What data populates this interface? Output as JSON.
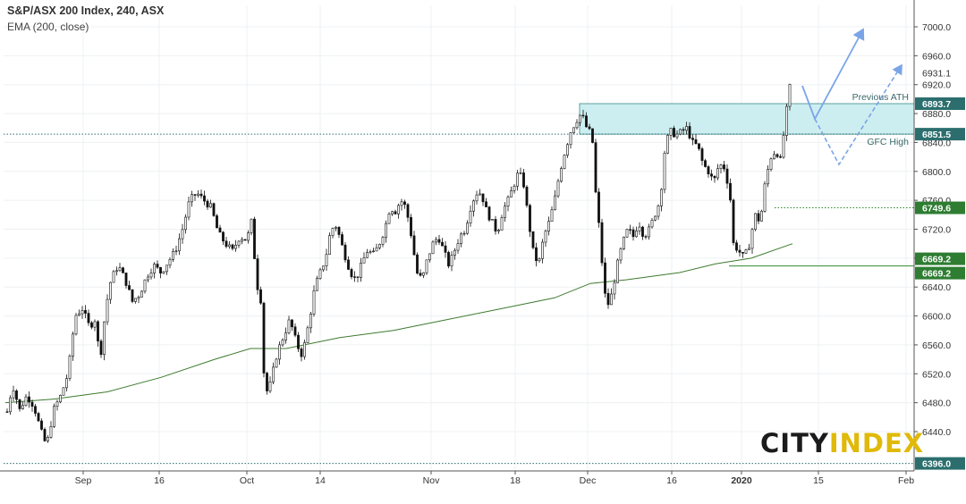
{
  "header": {
    "title": "S&P/ASX 200 Index, 240, ASX",
    "subtitle": "EMA (200, close)"
  },
  "logo": {
    "part1": "CITY",
    "part2": "INDEX"
  },
  "chart_data": {
    "type": "candlestick",
    "instrument": "S&P/ASX 200 Index",
    "timeframe": "240",
    "exchange": "ASX",
    "ylim": [
      6390,
      7020
    ],
    "y_ticks": [
      6440,
      6480,
      6520,
      6560,
      6600,
      6640,
      6680,
      6720,
      6760,
      6800,
      6840,
      6880,
      6920,
      6960,
      7000
    ],
    "y_tick_labels": [
      "6440.0",
      "6480.0",
      "6520.0",
      "6560.0",
      "6600.0",
      "6640.0",
      "6680.0",
      "6720.0",
      "6760.0",
      "6800.0",
      "6840.0",
      "6880.0",
      "6920.0",
      "6960.0",
      "7000.0"
    ],
    "x_tick_labels": [
      "Sep",
      "16",
      "Oct",
      "14",
      "Nov",
      "18",
      "Dec",
      "16",
      "2020",
      "15",
      "Feb"
    ],
    "price_labels": [
      {
        "value": 6931.1,
        "label": "6931.1",
        "style": "plain"
      },
      {
        "value": 6893.7,
        "label": "6893.7",
        "style": "box"
      },
      {
        "value": 6851.5,
        "label": "6851.5",
        "style": "box"
      },
      {
        "value": 6749.6,
        "label": "6749.6",
        "style": "box"
      },
      {
        "value": 6669.2,
        "label": "6669.2",
        "style": "box"
      },
      {
        "value": 6669.2,
        "label": "6669.2",
        "style": "box"
      },
      {
        "value": 6396.0,
        "label": "6396.0",
        "style": "box"
      }
    ],
    "zone": {
      "low": 6851.5,
      "high": 6893.7,
      "color": "#cdeef0",
      "border": "#3a8a8a"
    },
    "annotations": [
      {
        "text": "Previous ATH",
        "value": 6893.7
      },
      {
        "text": "GFC High",
        "value": 6851.5
      }
    ],
    "levels": [
      {
        "value": 6851.5,
        "style": "dotted",
        "color": "#2c6e6e"
      },
      {
        "value": 6749.6,
        "style": "dotted",
        "color": "#2e8b2e"
      },
      {
        "value": 6669.2,
        "style": "solid",
        "color": "#2e8b2e"
      },
      {
        "value": 6396.0,
        "style": "dotted",
        "color": "#2c6e6e"
      }
    ],
    "ema": {
      "period": 200,
      "color": "#3d7a2e"
    },
    "colors": {
      "up": "#ffffff",
      "down": "#111111",
      "wick": "#111111",
      "projection": "#7ba4e8"
    },
    "grid": true
  }
}
